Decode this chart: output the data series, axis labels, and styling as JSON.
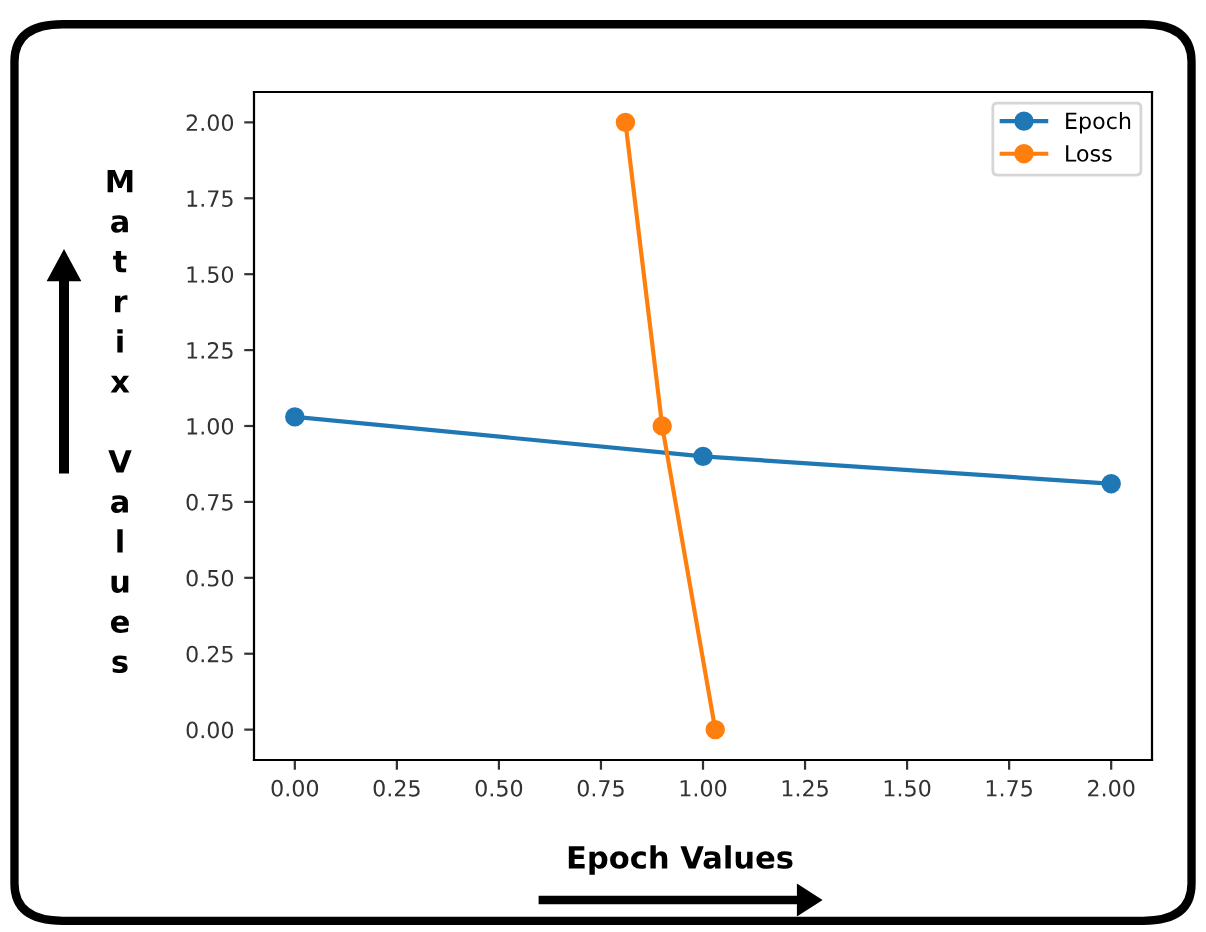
{
  "chart_data": {
    "type": "line",
    "xlabel": "Epoch Values",
    "ylabel": "Matrix Values",
    "series": [
      {
        "name": "Epoch",
        "color": "#1f77b4",
        "x": [
          0,
          1,
          2
        ],
        "values": [
          1.03,
          0.9,
          0.81
        ]
      },
      {
        "name": "Loss",
        "color": "#ff7f0e",
        "x": [
          0.81,
          0.9,
          1.03
        ],
        "values": [
          2.0,
          1.0,
          0.0
        ]
      }
    ],
    "xlim": [
      -0.1,
      2.1
    ],
    "ylim": [
      -0.1,
      2.1
    ],
    "xticks": [
      {
        "value": 0,
        "label": "0.00"
      },
      {
        "value": 0.25,
        "label": "0.25"
      },
      {
        "value": 0.5,
        "label": "0.50"
      },
      {
        "value": 0.75,
        "label": "0.75"
      },
      {
        "value": 1,
        "label": "1.00"
      },
      {
        "value": 1.25,
        "label": "1.25"
      },
      {
        "value": 1.5,
        "label": "1.50"
      },
      {
        "value": 1.75,
        "label": "1.75"
      },
      {
        "value": 2,
        "label": "2.00"
      }
    ],
    "yticks": [
      {
        "value": 0,
        "label": "0.00"
      },
      {
        "value": 0.25,
        "label": "0.25"
      },
      {
        "value": 0.5,
        "label": "0.50"
      },
      {
        "value": 0.75,
        "label": "0.75"
      },
      {
        "value": 1,
        "label": "1.00"
      },
      {
        "value": 1.25,
        "label": "1.25"
      },
      {
        "value": 1.5,
        "label": "1.50"
      },
      {
        "value": 1.75,
        "label": "1.75"
      },
      {
        "value": 2,
        "label": "2.00"
      }
    ],
    "grid": false,
    "legend": "top right",
    "marker": "circle",
    "line_style": "solid"
  }
}
